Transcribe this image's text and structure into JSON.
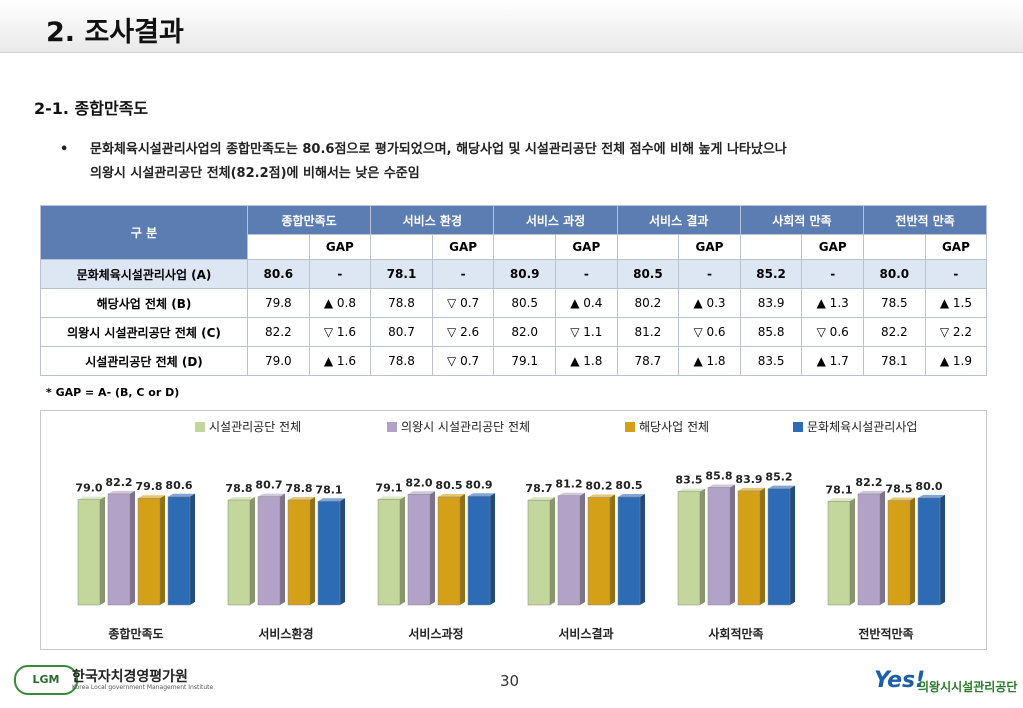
{
  "title": "2. 조사결과",
  "subtitle": "2-1. 종합만족도",
  "bullet": {
    "symbol": "•",
    "lines": [
      "문화체육시설관리사업의 종합만족도는 80.6점으로 평가되었으며, 해당사업 및 시설관리공단 전체 점수에 비해 높게 나타났으나",
      "의왕시 시설관리공단 전체(82.2점)에 비해서는 낮은 수준임"
    ]
  },
  "table": {
    "corner": "구 분",
    "headers": [
      "종합만족도",
      "서비스 환경",
      "서비스 과정",
      "서비스 결과",
      "사회적 만족",
      "전반적 만족"
    ],
    "gap_label": "GAP",
    "rows": [
      [
        "문화체육시설관리사업 (A)",
        "80.6",
        "-",
        "78.1",
        "-",
        "80.9",
        "-",
        "80.5",
        "-",
        "85.2",
        "-",
        "80.0",
        "-"
      ],
      [
        "해당사업 전체 (B)",
        "79.8",
        "▲ 0.8",
        "78.8",
        "▽ 0.7",
        "80.5",
        "▲ 0.4",
        "80.2",
        "▲ 0.3",
        "83.9",
        "▲ 1.3",
        "78.5",
        "▲ 1.5"
      ],
      [
        "의왕시 시설관리공단 전체 (C)",
        "82.2",
        "▽ 1.6",
        "80.7",
        "▽ 2.6",
        "82.0",
        "▽ 1.1",
        "81.2",
        "▽ 0.6",
        "85.8",
        "▽ 0.6",
        "82.2",
        "▽ 2.2"
      ],
      [
        "시설관리공단 전체 (D)",
        "79.0",
        "▲ 1.6",
        "78.8",
        "▽ 0.7",
        "79.1",
        "▲ 1.8",
        "78.7",
        "▲ 1.8",
        "83.5",
        "▲ 1.7",
        "78.1",
        "▲ 1.9"
      ]
    ]
  },
  "footnote": "* GAP = A- (B, C or D)",
  "chart_data": {
    "type": "bar",
    "categories": [
      "종합만족도",
      "서비스환경",
      "서비스과정",
      "서비스결과",
      "사회적만족",
      "전반적만족"
    ],
    "ylim": [
      20,
      90
    ],
    "series": [
      {
        "name": "시설관리공단 전체",
        "color": "#c3d69b",
        "values": [
          79,
          78.8,
          79.1,
          78.7,
          83.5,
          78.1
        ],
        "value_labels": [
          "79.0",
          "78.8",
          "79.1",
          "78.7",
          "83.5",
          "78.1"
        ]
      },
      {
        "name": "의왕시 시설관리공단 전체",
        "color": "#b3a2c7",
        "values": [
          82.2,
          80.7,
          82,
          81.2,
          85.8,
          82.2
        ],
        "value_labels": [
          "82.2",
          "80.7",
          "82.0",
          "81.2",
          "85.8",
          "82.2"
        ]
      },
      {
        "name": "해당사업 전체",
        "color": "#d4a017",
        "values": [
          79.8,
          78.8,
          80.5,
          80.2,
          83.9,
          78.5
        ],
        "value_labels": [
          "79.8",
          "78.8",
          "80.5",
          "80.2",
          "83.9",
          "78.5"
        ]
      },
      {
        "name": "문화체육시설관리사업",
        "color": "#2e6bb5",
        "values": [
          80.6,
          78.1,
          80.9,
          80.5,
          85.2,
          80
        ],
        "value_labels": [
          "80.6",
          "78.1",
          "80.9",
          "80.5",
          "85.2",
          "80.0"
        ]
      }
    ]
  },
  "page_number": "30",
  "footer": {
    "left_logo": "LGM",
    "left_org": "한국자치경영평가원",
    "left_org_en": "Korea Local government Management Institute",
    "right_logo": "Yes!",
    "right_org": "의왕시시설관리공단"
  }
}
